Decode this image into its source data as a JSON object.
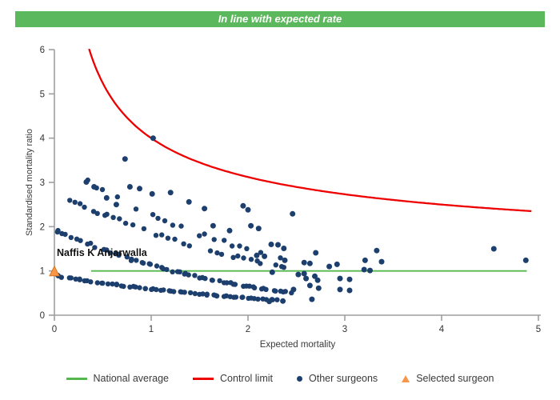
{
  "banner": {
    "text": "In line with expected rate",
    "bg": "#5cb85c",
    "fg": "#ffffff"
  },
  "chart_data": {
    "type": "scatter",
    "title": "",
    "xlabel": "Expected mortality",
    "ylabel": "Standardised mortality ratio",
    "xlim": [
      0,
      5
    ],
    "ylim": [
      0,
      6
    ],
    "x_ticks": [
      0,
      1,
      2,
      3,
      4,
      5
    ],
    "y_ticks": [
      0,
      1,
      2,
      3,
      4,
      5,
      6
    ],
    "grid": false,
    "legend_position": "bottom",
    "colors": {
      "other_surgeons": "#1d3f6e",
      "selected_surgeon": "#f79646",
      "selected_surgeon_border": "#d9771f",
      "national_average": "#55b84e",
      "control_limit": "#ee0000",
      "axis": "#9e9e9e",
      "tick_text": "#333333",
      "axis_label": "#3a3a3a"
    },
    "national_average": {
      "smr": 1.0,
      "e_start": 0.38,
      "e_end": 4.88
    },
    "control_limit": {
      "formula": "SMR = 1 + 3/sqrt(E)",
      "base": 1,
      "k": 3,
      "e_start": 0.36,
      "e_end": 4.93,
      "clip_smr": 6
    },
    "selected_surgeon": {
      "name": "Naffis K Anjarwalla",
      "e": 0.0,
      "smr": 0.98
    },
    "other_surgeons": {
      "bands": [
        {
          "name": "band-1",
          "tip_smr": 0.9,
          "decay": 0.42,
          "e_start": 0.02,
          "e_end": 2.3,
          "count": 62,
          "gap_chance": 0.0
        },
        {
          "name": "band-2",
          "tip_smr": 1.96,
          "decay": 0.55,
          "e_start": 0.01,
          "e_end": 2.45,
          "count": 62,
          "gap_chance": 0.02
        },
        {
          "name": "band-3",
          "tip_smr": 2.8,
          "decay": 0.4,
          "e_start": 0.08,
          "e_end": 2.45,
          "count": 40,
          "gap_chance": 0.18
        },
        {
          "name": "band-4",
          "tip_smr": 3.45,
          "decay": 0.42,
          "e_start": 0.33,
          "e_end": 2.4,
          "count": 26,
          "gap_chance": 0.28
        }
      ],
      "points": [
        [
          0.33,
          3.01
        ],
        [
          0.41,
          2.9
        ],
        [
          0.54,
          2.65
        ],
        [
          0.64,
          2.5
        ],
        [
          0.73,
          3.53
        ],
        [
          0.78,
          2.9
        ],
        [
          0.88,
          2.86
        ],
        [
          1.01,
          2.74
        ],
        [
          1.02,
          4.0
        ],
        [
          1.2,
          2.77
        ],
        [
          1.39,
          2.56
        ],
        [
          1.55,
          2.41
        ],
        [
          1.64,
          2.02
        ],
        [
          1.81,
          1.91
        ],
        [
          1.95,
          2.47
        ],
        [
          2.0,
          2.38
        ],
        [
          2.03,
          2.02
        ],
        [
          2.11,
          1.96
        ],
        [
          2.46,
          2.29
        ],
        [
          2.24,
          1.6
        ],
        [
          2.31,
          1.59
        ],
        [
          2.37,
          1.51
        ],
        [
          2.09,
          1.35
        ],
        [
          2.17,
          1.33
        ],
        [
          2.38,
          1.24
        ],
        [
          2.58,
          1.19
        ],
        [
          2.64,
          1.17
        ],
        [
          2.7,
          1.41
        ],
        [
          2.84,
          1.1
        ],
        [
          2.92,
          1.15
        ],
        [
          3.2,
          1.03
        ],
        [
          3.26,
          1.01
        ],
        [
          3.21,
          1.24
        ],
        [
          3.33,
          1.46
        ],
        [
          3.38,
          1.21
        ],
        [
          4.54,
          1.5
        ],
        [
          4.87,
          1.24
        ],
        [
          2.25,
          0.97
        ],
        [
          2.52,
          0.92
        ],
        [
          2.58,
          0.94
        ],
        [
          2.6,
          0.83
        ],
        [
          2.69,
          0.88
        ],
        [
          2.72,
          0.79
        ],
        [
          2.64,
          0.67
        ],
        [
          2.73,
          0.61
        ],
        [
          2.95,
          0.83
        ],
        [
          3.05,
          0.81
        ],
        [
          2.95,
          0.58
        ],
        [
          3.05,
          0.56
        ],
        [
          2.47,
          0.58
        ],
        [
          2.36,
          0.32
        ],
        [
          2.66,
          0.36
        ],
        [
          2.22,
          0.31
        ]
      ]
    },
    "legend": [
      {
        "label": "National average",
        "type": "line"
      },
      {
        "label": "Control limit",
        "type": "line"
      },
      {
        "label": "Other surgeons",
        "type": "dot"
      },
      {
        "label": "Selected surgeon",
        "type": "triangle"
      }
    ]
  }
}
